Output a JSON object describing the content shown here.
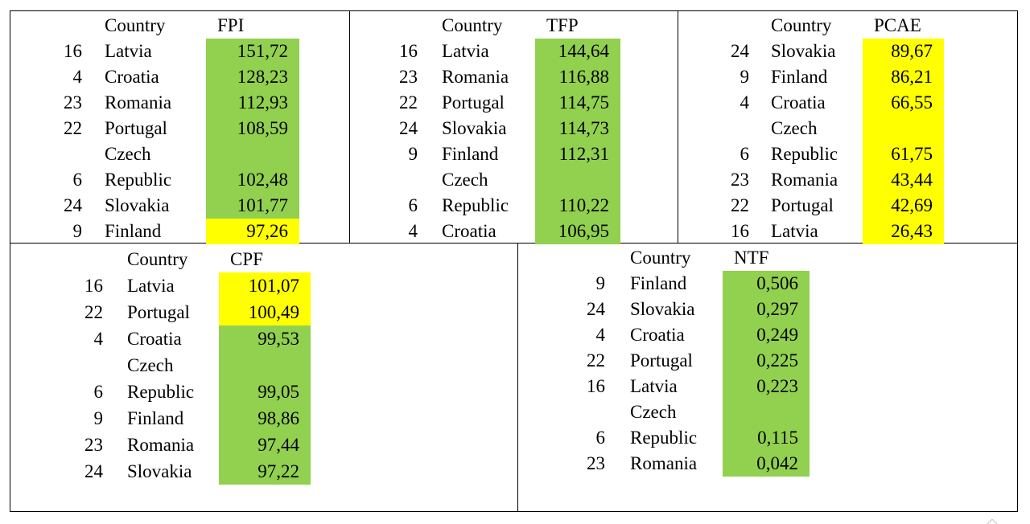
{
  "panels": [
    {
      "id": "fpi",
      "header_country": "Country",
      "header_metric": "FPI",
      "rows": [
        {
          "num": "16",
          "country": [
            "Latvia"
          ],
          "value": "151,72",
          "hl": "green"
        },
        {
          "num": "4",
          "country": [
            "Croatia"
          ],
          "value": "128,23",
          "hl": "green"
        },
        {
          "num": "23",
          "country": [
            "Romania"
          ],
          "value": "112,93",
          "hl": "green"
        },
        {
          "num": "22",
          "country": [
            "Portugal"
          ],
          "value": "108,59",
          "hl": "green"
        },
        {
          "num": "6",
          "country": [
            "Czech",
            "Republic"
          ],
          "value": "102,48",
          "hl": "green"
        },
        {
          "num": "24",
          "country": [
            "Slovakia"
          ],
          "value": "101,77",
          "hl": "green"
        },
        {
          "num": "9",
          "country": [
            "Finland"
          ],
          "value": "97,26",
          "hl": "yellow"
        }
      ]
    },
    {
      "id": "tfp",
      "header_country": "Country",
      "header_metric": "TFP",
      "rows": [
        {
          "num": "16",
          "country": [
            "Latvia"
          ],
          "value": "144,64",
          "hl": "green"
        },
        {
          "num": "23",
          "country": [
            "Romania"
          ],
          "value": "116,88",
          "hl": "green"
        },
        {
          "num": "22",
          "country": [
            "Portugal"
          ],
          "value": "114,75",
          "hl": "green"
        },
        {
          "num": "24",
          "country": [
            "Slovakia"
          ],
          "value": "114,73",
          "hl": "green"
        },
        {
          "num": "9",
          "country": [
            "Finland"
          ],
          "value": "112,31",
          "hl": "green"
        },
        {
          "num": "6",
          "country": [
            "Czech",
            "Republic"
          ],
          "value": "110,22",
          "hl": "green"
        },
        {
          "num": "4",
          "country": [
            "Croatia"
          ],
          "value": "106,95",
          "hl": "green"
        }
      ]
    },
    {
      "id": "pcae",
      "header_country": "Country",
      "header_metric": "PCAE",
      "rows": [
        {
          "num": "24",
          "country": [
            "Slovakia"
          ],
          "value": "89,67",
          "hl": "yellow"
        },
        {
          "num": "9",
          "country": [
            "Finland"
          ],
          "value": "86,21",
          "hl": "yellow"
        },
        {
          "num": "4",
          "country": [
            "Croatia"
          ],
          "value": "66,55",
          "hl": "yellow"
        },
        {
          "num": "6",
          "country": [
            "Czech",
            "Republic"
          ],
          "value": "61,75",
          "hl": "yellow"
        },
        {
          "num": "23",
          "country": [
            "Romania"
          ],
          "value": "43,44",
          "hl": "yellow"
        },
        {
          "num": "22",
          "country": [
            "Portugal"
          ],
          "value": "42,69",
          "hl": "yellow"
        },
        {
          "num": "16",
          "country": [
            "Latvia"
          ],
          "value": "26,43",
          "hl": "yellow"
        }
      ]
    },
    {
      "id": "cpf",
      "header_country": "Country",
      "header_metric": "CPF",
      "rows": [
        {
          "num": "16",
          "country": [
            "Latvia"
          ],
          "value": "101,07",
          "hl": "yellow"
        },
        {
          "num": "22",
          "country": [
            "Portugal"
          ],
          "value": "100,49",
          "hl": "yellow"
        },
        {
          "num": "4",
          "country": [
            "Croatia"
          ],
          "value": "99,53",
          "hl": "green"
        },
        {
          "num": "6",
          "country": [
            "Czech",
            "Republic"
          ],
          "value": "99,05",
          "hl": "green"
        },
        {
          "num": "9",
          "country": [
            "Finland"
          ],
          "value": "98,86",
          "hl": "green"
        },
        {
          "num": "23",
          "country": [
            "Romania"
          ],
          "value": "97,44",
          "hl": "green"
        },
        {
          "num": "24",
          "country": [
            "Slovakia"
          ],
          "value": "97,22",
          "hl": "green"
        }
      ]
    },
    {
      "id": "ntf",
      "header_country": "Country",
      "header_metric": "NTF",
      "rows": [
        {
          "num": "9",
          "country": [
            "Finland"
          ],
          "value": "0,506",
          "hl": "green"
        },
        {
          "num": "24",
          "country": [
            "Slovakia"
          ],
          "value": "0,297",
          "hl": "green"
        },
        {
          "num": "4",
          "country": [
            "Croatia"
          ],
          "value": "0,249",
          "hl": "green"
        },
        {
          "num": "22",
          "country": [
            "Portugal"
          ],
          "value": "0,225",
          "hl": "green"
        },
        {
          "num": "16",
          "country": [
            "Latvia"
          ],
          "value": "0,223",
          "hl": "green"
        },
        {
          "num": "6",
          "country": [
            "Czech",
            "Republic"
          ],
          "value": "0,115",
          "hl": "green"
        },
        {
          "num": "23",
          "country": [
            "Romania"
          ],
          "value": "0,042",
          "hl": "green"
        }
      ]
    }
  ],
  "colors": {
    "green": "#92d050",
    "yellow": "#ffff00",
    "border": "#000000"
  }
}
